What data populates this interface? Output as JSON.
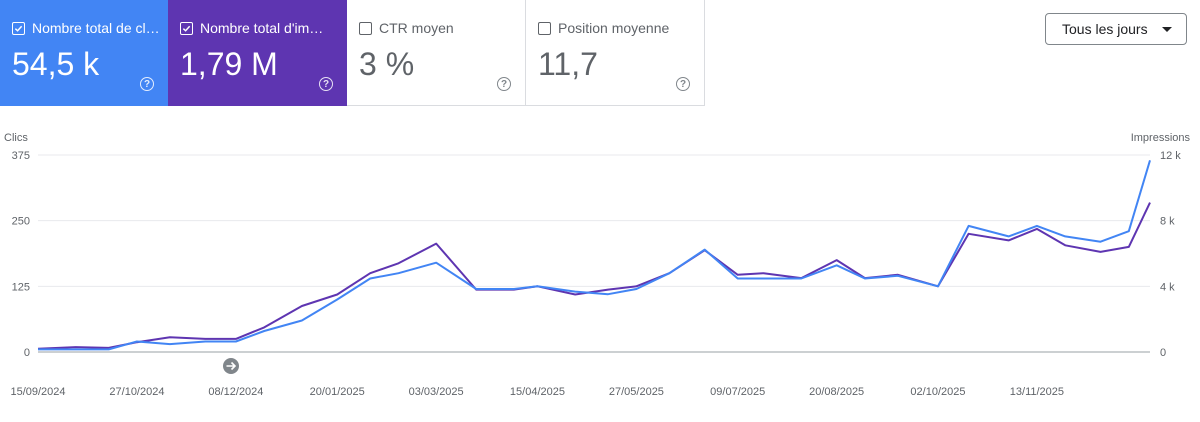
{
  "metrics": [
    {
      "label": "Nombre total de clics",
      "value": "54,5 k",
      "checked": true,
      "color": "#4285f4"
    },
    {
      "label": "Nombre total d'impressions",
      "value": "1,79 M",
      "checked": true,
      "color": "#5e35b1"
    },
    {
      "label": "CTR moyen",
      "value": "3 %",
      "checked": false
    },
    {
      "label": "Position moyenne",
      "value": "11,7",
      "checked": false
    }
  ],
  "period_dropdown": {
    "label": "Tous les jours"
  },
  "chart_data": {
    "type": "line",
    "left_axis": {
      "label": "Clics",
      "ticks": [
        "375",
        "250",
        "125",
        "0"
      ],
      "range": [
        0,
        375
      ]
    },
    "right_axis": {
      "label": "Impressions",
      "ticks": [
        "12 k",
        "8 k",
        "4 k",
        "0"
      ],
      "range": [
        0,
        12000
      ]
    },
    "x_tick_labels": [
      "15/09/2024",
      "27/10/2024",
      "08/12/2024",
      "20/01/2025",
      "03/03/2025",
      "15/04/2025",
      "27/05/2025",
      "09/07/2025",
      "20/08/2025",
      "02/10/2025",
      "13/11/2025"
    ],
    "x_start": "15/09/2024",
    "x_end": "31/12/2025",
    "grid": true,
    "series": [
      {
        "name": "Impressions",
        "axis": "right",
        "color": "#5e35b1",
        "x": [
          "15/09/2024",
          "01/10/2024",
          "15/10/2024",
          "27/10/2024",
          "10/11/2024",
          "25/11/2024",
          "08/12/2024",
          "20/12/2024",
          "05/01/2025",
          "20/01/2025",
          "03/02/2025",
          "15/02/2025",
          "03/03/2025",
          "20/03/2025",
          "05/04/2025",
          "15/04/2025",
          "01/05/2025",
          "15/05/2025",
          "27/05/2025",
          "10/06/2025",
          "25/06/2025",
          "09/07/2025",
          "20/07/2025",
          "05/08/2025",
          "20/08/2025",
          "01/09/2025",
          "15/09/2025",
          "02/10/2025",
          "15/10/2025",
          "01/11/2025",
          "13/11/2025",
          "25/11/2025",
          "10/12/2025",
          "22/12/2025",
          "31/12/2025"
        ],
        "values": [
          200,
          300,
          250,
          600,
          900,
          800,
          800,
          1500,
          2800,
          3500,
          4800,
          5400,
          6600,
          3800,
          3800,
          4000,
          3500,
          3800,
          4000,
          4800,
          6200,
          4700,
          4800,
          4500,
          5600,
          4500,
          4700,
          4000,
          7200,
          6800,
          7500,
          6500,
          6100,
          6400,
          9100
        ]
      },
      {
        "name": "Clics",
        "axis": "left",
        "color": "#4285f4",
        "x": [
          "15/09/2024",
          "01/10/2024",
          "15/10/2024",
          "27/10/2024",
          "10/11/2024",
          "25/11/2024",
          "08/12/2024",
          "20/12/2024",
          "05/01/2025",
          "20/01/2025",
          "03/02/2025",
          "15/02/2025",
          "03/03/2025",
          "20/03/2025",
          "05/04/2025",
          "15/04/2025",
          "01/05/2025",
          "15/05/2025",
          "27/05/2025",
          "10/06/2025",
          "25/06/2025",
          "09/07/2025",
          "20/07/2025",
          "05/08/2025",
          "20/08/2025",
          "01/09/2025",
          "15/09/2025",
          "02/10/2025",
          "15/10/2025",
          "01/11/2025",
          "13/11/2025",
          "25/11/2025",
          "10/12/2025",
          "22/12/2025",
          "31/12/2025"
        ],
        "values": [
          5,
          5,
          5,
          20,
          15,
          20,
          20,
          40,
          60,
          100,
          140,
          150,
          170,
          120,
          120,
          125,
          115,
          110,
          120,
          150,
          195,
          140,
          140,
          140,
          165,
          140,
          145,
          125,
          240,
          220,
          240,
          220,
          210,
          230,
          365
        ]
      }
    ]
  }
}
